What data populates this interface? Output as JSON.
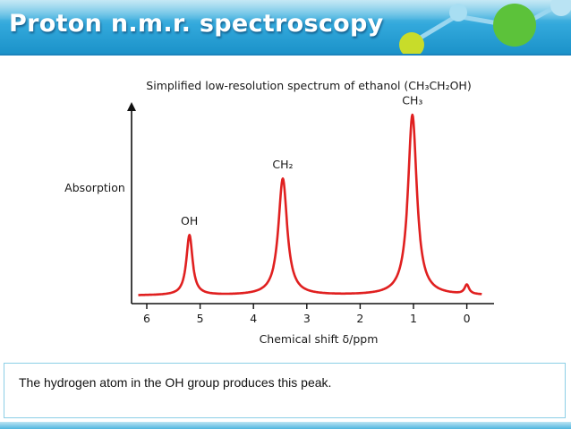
{
  "slide": {
    "title": "Proton n.m.r. spectroscopy",
    "caption": "The hydrogen atom in the OH group produces this peak.",
    "colors": {
      "banner": "#33a9dc",
      "spectrum_line": "#e02020",
      "accent_ball_yellow": "#c8dc2a",
      "accent_ball_green": "#5cc23a"
    }
  },
  "chart_data": {
    "type": "line",
    "title": "Simplified low-resolution spectrum of ethanol (CH₃CH₂OH)",
    "xlabel": "Chemical shift δ/ppm",
    "ylabel": "Absorption",
    "xlim": [
      6.2,
      -0.3
    ],
    "x_reversed": true,
    "ylim": [
      0,
      1
    ],
    "xticks": [
      "6",
      "5",
      "4",
      "3",
      "2",
      "1",
      "0"
    ],
    "grid": false,
    "series": [
      {
        "peaks": [
          {
            "label": "OH",
            "shift": 5.2,
            "height": 0.32
          },
          {
            "label": "CH₂",
            "shift": 3.45,
            "height": 0.62
          },
          {
            "label": "CH₃",
            "shift": 1.02,
            "height": 0.96
          },
          {
            "label": "",
            "shift": 0.0,
            "height": 0.05
          }
        ]
      }
    ]
  }
}
